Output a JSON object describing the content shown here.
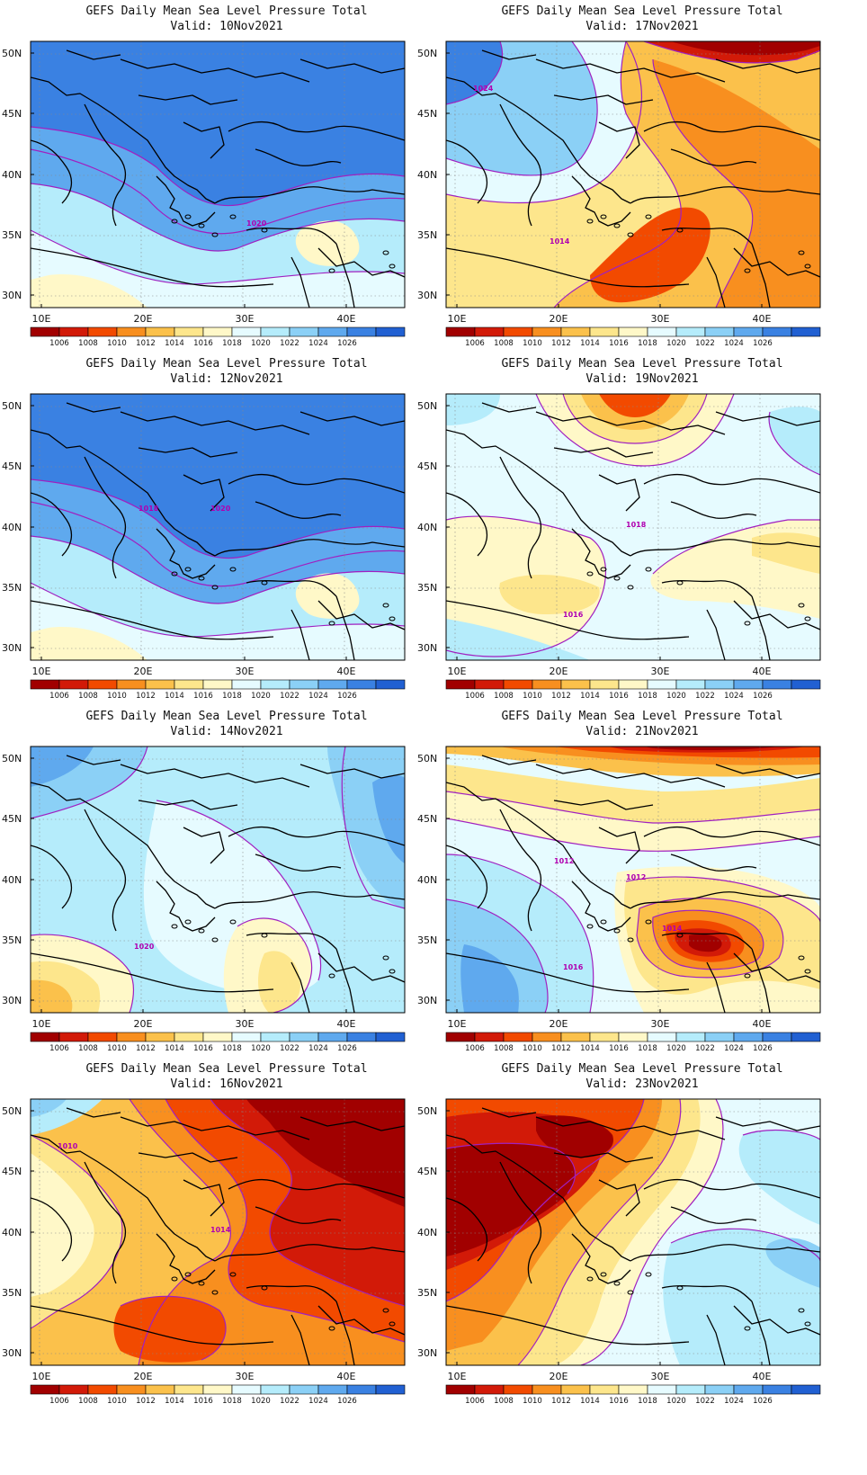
{
  "colorbar": {
    "levels": [
      "1006",
      "1008",
      "1010",
      "1012",
      "1014",
      "1016",
      "1018",
      "1020",
      "1022",
      "1024",
      "1026"
    ],
    "colors": [
      "#a10000",
      "#d21a08",
      "#f24a00",
      "#f88f1f",
      "#fbc14b",
      "#fde68c",
      "#fff8c8",
      "#e6fbff",
      "#b5ecfb",
      "#8bd0f6",
      "#5fa9ee",
      "#3a81e2",
      "#2160d2"
    ]
  },
  "axes": {
    "lat_ticks": [
      "50N",
      "45N",
      "40N",
      "35N",
      "30N"
    ],
    "lon_ticks": [
      "10E",
      "20E",
      "30E",
      "40E"
    ]
  },
  "panels": [
    {
      "title": "GEFS Daily Mean Sea Level Pressure Total",
      "valid": "Valid:  10Nov2021",
      "labels": [
        "1020"
      ],
      "theme": "cold"
    },
    {
      "title": "GEFS Daily Mean Sea Level Pressure Total",
      "valid": "Valid:  17Nov2021",
      "labels": [
        "1024",
        "1014"
      ],
      "theme": "warm-mixed"
    },
    {
      "title": "GEFS Daily Mean Sea Level Pressure Total",
      "valid": "Valid:  12Nov2021",
      "labels": [
        "1020",
        "1018"
      ],
      "theme": "cold"
    },
    {
      "title": "GEFS Daily Mean Sea Level Pressure Total",
      "valid": "Valid:  19Nov2021",
      "labels": [
        "1016",
        "1018"
      ],
      "theme": "neutral"
    },
    {
      "title": "GEFS Daily Mean Sea Level Pressure Total",
      "valid": "Valid:  14Nov2021",
      "labels": [
        "1020"
      ],
      "theme": "cool"
    },
    {
      "title": "GEFS Daily Mean Sea Level Pressure Total",
      "valid": "Valid:  21Nov2021",
      "labels": [
        "1012",
        "1014",
        "1016",
        "1012"
      ],
      "theme": "cyclone"
    },
    {
      "title": "GEFS Daily Mean Sea Level Pressure Total",
      "valid": "Valid:  16Nov2021",
      "labels": [
        "1014",
        "1010"
      ],
      "theme": "warm"
    },
    {
      "title": "GEFS Daily Mean Sea Level Pressure Total",
      "valid": "Valid:  23Nov2021",
      "labels": [],
      "theme": "west-low"
    }
  ]
}
